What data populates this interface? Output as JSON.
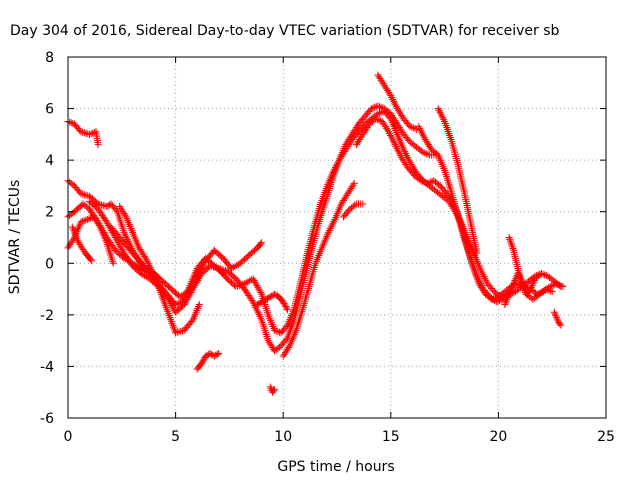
{
  "chart_data": {
    "type": "scatter",
    "title": "Day 304 of 2016, Sidereal Day-to-day VTEC variation (SDTVAR) for receiver sb",
    "xlabel": "GPS time / hours",
    "ylabel": "SDTVAR / TECUs",
    "xlim": [
      0,
      25
    ],
    "ylim": [
      -6,
      8
    ],
    "xticks": [
      "0",
      "5",
      "10",
      "15",
      "20",
      "25"
    ],
    "yticks": [
      "-6",
      "-4",
      "-2",
      "0",
      "2",
      "4",
      "6",
      "8"
    ],
    "grid": true,
    "marker": "plus",
    "color": "#ff0000",
    "series": [
      {
        "x": [
          0.0,
          0.3,
          0.6,
          1.0,
          1.3,
          1.4
        ],
        "y": [
          5.5,
          5.4,
          5.1,
          5.0,
          5.1,
          4.6
        ]
      },
      {
        "x": [
          0.0,
          0.3,
          0.6,
          1.0,
          1.4,
          1.8,
          2.0,
          2.3,
          2.6,
          3.0,
          3.4,
          3.8,
          4.2,
          4.6,
          5.0,
          5.4,
          5.8,
          6.1
        ],
        "y": [
          3.2,
          3.0,
          2.7,
          2.6,
          2.3,
          2.2,
          2.3,
          2.0,
          1.2,
          0.5,
          0.0,
          -0.4,
          -0.9,
          -1.8,
          -2.7,
          -2.6,
          -2.2,
          -1.6
        ]
      },
      {
        "x": [
          0.0,
          0.3,
          0.7,
          1.0,
          1.4,
          1.8,
          2.2,
          2.6,
          3.0,
          3.4,
          3.8,
          4.2,
          4.6,
          5.0,
          5.3,
          5.6,
          6.0,
          6.4,
          6.8,
          7.2
        ],
        "y": [
          1.8,
          2.0,
          2.3,
          2.1,
          1.6,
          1.0,
          0.5,
          0.2,
          0.0,
          -0.2,
          -0.4,
          -0.8,
          -1.2,
          -1.6,
          -1.5,
          -1.0,
          -0.2,
          0.2,
          -0.1,
          -0.4
        ]
      },
      {
        "x": [
          0.0,
          0.3,
          0.6,
          0.9,
          1.2,
          1.5,
          1.8,
          2.1
        ],
        "y": [
          0.6,
          1.0,
          1.6,
          1.7,
          1.8,
          1.4,
          0.8,
          0.0
        ]
      },
      {
        "x": [
          0.2,
          0.5,
          0.8,
          1.0,
          1.1
        ],
        "y": [
          1.4,
          0.8,
          0.4,
          0.2,
          0.1
        ]
      },
      {
        "x": [
          1.0,
          1.4,
          1.8,
          2.2,
          2.6,
          3.0,
          3.4,
          3.8,
          4.2,
          4.6,
          5.0,
          5.4,
          5.8,
          6.2,
          6.6,
          7.0,
          7.4,
          7.8,
          8.2,
          8.6,
          9.0,
          9.3,
          9.6,
          9.9,
          10.2,
          10.5,
          10.8,
          11.1,
          11.4,
          11.7,
          12.0,
          12.3,
          12.6,
          12.9,
          13.2,
          13.5,
          13.8,
          14.1,
          14.4,
          14.7,
          15.0,
          15.3,
          15.6,
          15.9,
          16.2,
          16.5,
          16.8,
          17.1,
          17.4,
          17.7,
          18.0,
          18.3,
          18.6,
          18.9,
          19.2,
          19.5,
          19.8,
          20.1,
          20.4
        ],
        "y": [
          2.4,
          2.1,
          1.6,
          1.0,
          0.4,
          -0.1,
          -0.4,
          -0.6,
          -0.9,
          -1.3,
          -1.9,
          -1.6,
          -1.0,
          -0.4,
          -0.1,
          -0.2,
          -0.6,
          -0.9,
          -0.8,
          -0.6,
          -1.2,
          -2.0,
          -2.6,
          -2.7,
          -2.4,
          -1.8,
          -0.8,
          0.3,
          1.3,
          2.2,
          2.9,
          3.5,
          4.0,
          4.4,
          4.8,
          5.1,
          5.4,
          5.6,
          5.8,
          5.9,
          5.6,
          5.0,
          4.4,
          3.9,
          3.5,
          3.2,
          3.0,
          2.8,
          2.6,
          2.4,
          2.0,
          1.5,
          0.9,
          0.3,
          -0.3,
          -0.8,
          -1.1,
          -1.3,
          -1.2
        ]
      },
      {
        "x": [
          2.0,
          2.4,
          2.8,
          3.2,
          3.6,
          4.0,
          4.4,
          4.8,
          5.2,
          5.6,
          6.0,
          6.4,
          6.8,
          7.2,
          7.6,
          8.0,
          8.4,
          8.8,
          9.0
        ],
        "y": [
          1.4,
          1.0,
          0.6,
          0.2,
          -0.2,
          -0.4,
          -0.7,
          -1.0,
          -1.3,
          -1.1,
          -0.5,
          0.1,
          0.5,
          0.2,
          -0.2,
          0.0,
          0.3,
          0.6,
          0.8
        ]
      },
      {
        "x": [
          2.4,
          2.7,
          3.0,
          3.3,
          3.6,
          3.9,
          4.2
        ],
        "y": [
          2.2,
          1.8,
          1.2,
          0.6,
          0.2,
          -0.3,
          -0.6
        ]
      },
      {
        "x": [
          6.0,
          6.2,
          6.4,
          6.6,
          6.8,
          7.0
        ],
        "y": [
          -4.1,
          -3.9,
          -3.6,
          -3.5,
          -3.6,
          -3.5
        ]
      },
      {
        "x": [
          7.0,
          7.4,
          7.8,
          8.2,
          8.6,
          9.0,
          9.3,
          9.6,
          9.9,
          10.2,
          10.5,
          10.8,
          11.1,
          11.4,
          11.7,
          12.0,
          12.3,
          12.6,
          12.9,
          13.2,
          13.5,
          13.8,
          14.1,
          14.4,
          14.7,
          15.0,
          15.3,
          15.6,
          15.9,
          16.2,
          16.5,
          16.8,
          17.1
        ],
        "y": [
          -0.2,
          -0.3,
          -0.6,
          -1.0,
          -1.5,
          -2.2,
          -3.0,
          -3.4,
          -3.2,
          -2.9,
          -2.2,
          -1.2,
          -0.2,
          0.8,
          1.7,
          2.5,
          3.3,
          4.0,
          4.6,
          5.0,
          5.4,
          5.7,
          6.0,
          6.1,
          6.0,
          5.8,
          5.4,
          5.0,
          4.7,
          4.5,
          4.3,
          4.2,
          4.2
        ]
      },
      {
        "x": [
          8.8,
          9.0,
          9.2,
          9.4,
          9.6,
          9.8,
          10.0,
          10.2
        ],
        "y": [
          -1.6,
          -1.5,
          -1.4,
          -1.3,
          -1.2,
          -1.3,
          -1.5,
          -1.8
        ]
      },
      {
        "x": [
          9.4,
          9.5,
          9.6
        ],
        "y": [
          -4.8,
          -5.0,
          -4.9
        ]
      },
      {
        "x": [
          10.0,
          10.3,
          10.6,
          10.9,
          11.2,
          11.5,
          11.8,
          12.1,
          12.4,
          12.7,
          13.0,
          13.3
        ],
        "y": [
          -3.6,
          -3.2,
          -2.6,
          -1.8,
          -0.9,
          0.0,
          0.6,
          1.2,
          1.7,
          2.3,
          2.7,
          3.1
        ]
      },
      {
        "x": [
          12.8,
          13.1,
          13.4,
          13.7
        ],
        "y": [
          1.8,
          2.1,
          2.3,
          2.3
        ]
      },
      {
        "x": [
          13.4,
          13.7,
          14.0,
          14.3,
          14.6,
          14.9,
          15.2,
          15.5,
          15.8,
          16.1,
          16.4,
          16.7,
          17.0,
          17.3,
          17.6,
          17.9,
          18.2,
          18.5,
          18.8,
          19.1,
          19.4,
          19.7,
          20.0,
          20.3,
          20.6,
          20.9,
          21.2,
          21.5,
          21.8,
          22.1,
          22.4,
          22.7,
          23.0
        ],
        "y": [
          4.6,
          5.0,
          5.4,
          5.6,
          5.5,
          5.1,
          4.6,
          4.1,
          3.7,
          3.4,
          3.2,
          3.1,
          3.2,
          3.0,
          2.7,
          2.4,
          1.7,
          0.8,
          -0.1,
          -0.8,
          -1.2,
          -1.4,
          -1.3,
          -1.1,
          -0.9,
          -0.8,
          -0.9,
          -1.0,
          -1.2,
          -1.1,
          -0.9,
          -0.8,
          -0.9
        ]
      },
      {
        "x": [
          14.4,
          14.7,
          15.0,
          15.3,
          15.6,
          15.9,
          16.2
        ],
        "y": [
          7.3,
          6.9,
          6.5,
          6.0,
          5.6,
          5.3,
          5.2
        ]
      },
      {
        "x": [
          16.3,
          16.6,
          16.9,
          17.2,
          17.5,
          17.8,
          18.1,
          18.4,
          18.7,
          19.0,
          19.3,
          19.6,
          19.9,
          20.2,
          20.5,
          20.8,
          21.1,
          21.4,
          21.7,
          22.0
        ],
        "y": [
          5.3,
          4.8,
          4.4,
          4.2,
          3.6,
          2.8,
          1.9,
          1.0,
          0.2,
          -0.5,
          -1.0,
          -1.3,
          -1.5,
          -1.4,
          -1.2,
          -1.1,
          -0.9,
          -0.7,
          -0.5,
          -0.4
        ]
      },
      {
        "x": [
          17.2,
          17.5,
          17.8,
          18.1,
          18.4,
          18.7,
          19.0
        ],
        "y": [
          6.0,
          5.5,
          4.8,
          3.9,
          2.8,
          1.6,
          0.4
        ]
      },
      {
        "x": [
          20.5,
          20.7,
          20.9,
          21.1,
          21.3,
          21.5,
          21.7,
          22.0,
          22.3,
          22.6,
          22.9
        ],
        "y": [
          1.0,
          0.5,
          -0.2,
          -0.8,
          -1.2,
          -1.0,
          -0.6,
          -0.4,
          -0.5,
          -0.7,
          -0.9
        ]
      },
      {
        "x": [
          20.3,
          20.5,
          20.7,
          20.9,
          21.1,
          21.3,
          21.6,
          21.9,
          22.2,
          22.5
        ],
        "y": [
          -1.6,
          -1.2,
          -0.8,
          -0.4,
          -0.7,
          -1.2,
          -1.4,
          -1.2,
          -1.0,
          -1.1
        ]
      },
      {
        "x": [
          22.6,
          22.7,
          22.8,
          22.9
        ],
        "y": [
          -1.9,
          -2.1,
          -2.3,
          -2.4
        ]
      }
    ]
  }
}
